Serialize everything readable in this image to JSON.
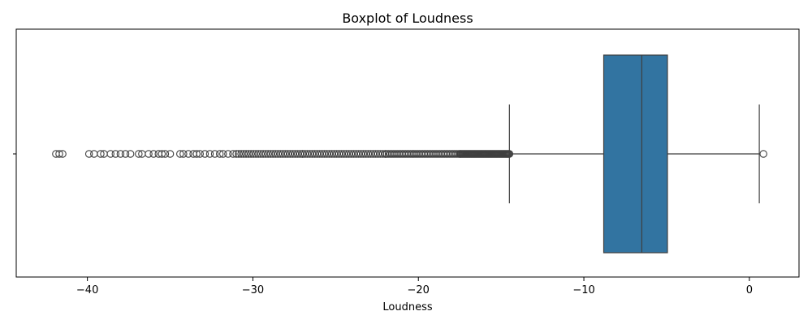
{
  "chart_data": {
    "type": "boxplot",
    "title": "Boxplot of Loudness",
    "xlabel": "Loudness",
    "ylabel": "",
    "orientation": "horizontal",
    "xlim": [
      -44.3,
      3.0
    ],
    "xticks": [
      -40,
      -30,
      -20,
      -10,
      0
    ],
    "xtick_labels": [
      "−40",
      "−30",
      "−20",
      "−10",
      "0"
    ],
    "grid": false,
    "legend": "none",
    "box": {
      "q1": -8.8,
      "median": -6.5,
      "q3": -4.95,
      "whisker_low": -14.5,
      "whisker_high": 0.6
    },
    "outliers_high": [
      0.85
    ],
    "outlier_ranges_low": [
      {
        "from": -14.5,
        "to": -17.5,
        "count": 60
      },
      {
        "from": -17.5,
        "to": -22.0,
        "count": 45
      },
      {
        "from": -22.0,
        "to": -27.0,
        "count": 35
      },
      {
        "from": -27.0,
        "to": -31.0,
        "count": 28
      }
    ],
    "outliers_low_sparse": [
      -31.2,
      -31.5,
      -31.8,
      -32.0,
      -32.3,
      -32.6,
      -32.9,
      -33.2,
      -33.4,
      -33.6,
      -33.9,
      -34.2,
      -34.4,
      -35.0,
      -35.3,
      -35.5,
      -35.7,
      -36.0,
      -36.3,
      -36.7,
      -36.9,
      -37.4,
      -37.7,
      -38.0,
      -38.3,
      -38.6,
      -39.0,
      -39.2,
      -39.6,
      -39.9,
      -41.5,
      -41.7,
      -41.9
    ],
    "colors": {
      "box_fill": "#3274a1",
      "line": "#3f3f3f",
      "axis": "#000000"
    }
  }
}
